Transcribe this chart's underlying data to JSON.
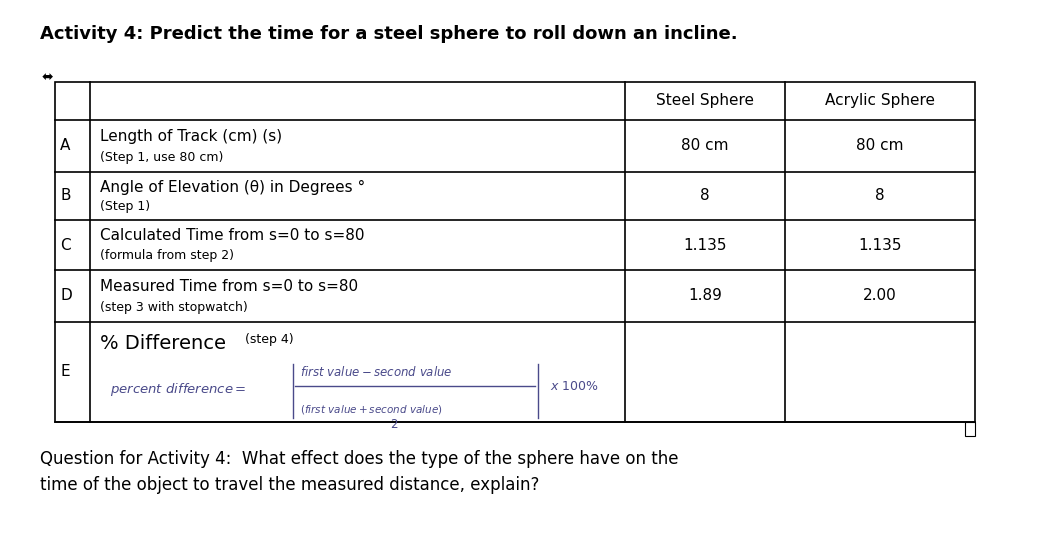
{
  "title": "Activity 4: Predict the time for a steel sphere to roll down an incline.",
  "title_fontsize": 13,
  "col_header_1": "Steel Sphere",
  "col_header_2": "Acrylic Sphere",
  "rows": [
    {
      "label": "A",
      "main_text": "Length of Track (cm) (s)",
      "sub_text": "(Step 1, use 80 cm)",
      "steel": "80 cm",
      "acrylic": "80 cm",
      "has_sub": true
    },
    {
      "label": "B",
      "main_text": "Angle of Elevation (θ) in Degrees °",
      "sub_text": "(Step 1)",
      "steel": "8",
      "acrylic": "8",
      "has_sub": true
    },
    {
      "label": "C",
      "main_text": "Calculated Time from s=0 to s=80",
      "sub_text": "(formula from step 2)",
      "steel": "1.135",
      "acrylic": "1.135",
      "has_sub": true
    },
    {
      "label": "D",
      "main_text": "Measured Time from s=0 to s=80",
      "sub_text": "(step 3 with stopwatch)",
      "steel": "1.89",
      "acrylic": "2.00",
      "has_sub": true
    },
    {
      "label": "E",
      "main_text": "% Difference",
      "sub_text": "(step 4)",
      "steel": "",
      "acrylic": "",
      "has_sub": false
    }
  ],
  "question": "Question for Activity 4:  What effect does the type of the sphere have on the\ntime of the object to travel the measured distance, explain?",
  "question_fontsize": 12,
  "bg_color": "#ffffff",
  "font_color": "#000000",
  "formula_color": "#4a4a8a"
}
